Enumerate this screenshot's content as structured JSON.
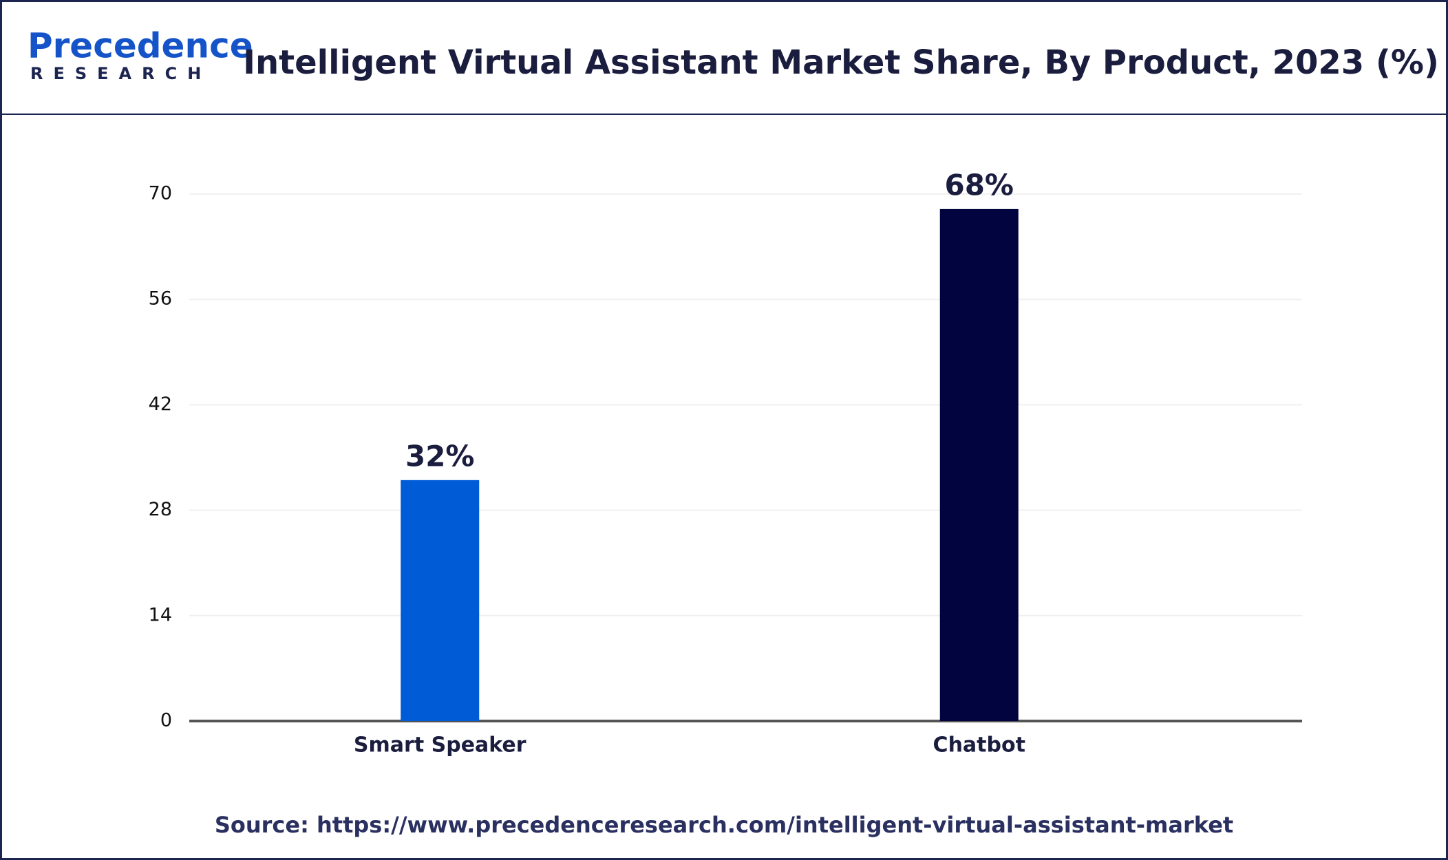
{
  "logo": {
    "name": "Precedence",
    "tagline": "RESEARCH"
  },
  "chart_data": {
    "type": "bar",
    "title": "Intelligent Virtual Assistant Market  Share, By Product, 2023 (%)",
    "categories": [
      "Smart Speaker",
      "Chatbot"
    ],
    "values": [
      32,
      68
    ],
    "value_labels": [
      "32%",
      "68%"
    ],
    "colors": [
      "#005bd6",
      "#02043f"
    ],
    "ylim": [
      0,
      70
    ],
    "yticks": [
      0,
      14,
      28,
      42,
      56,
      70
    ],
    "grid": true
  },
  "source": "Source: https://www.precedenceresearch.com/intelligent-virtual-assistant-market"
}
